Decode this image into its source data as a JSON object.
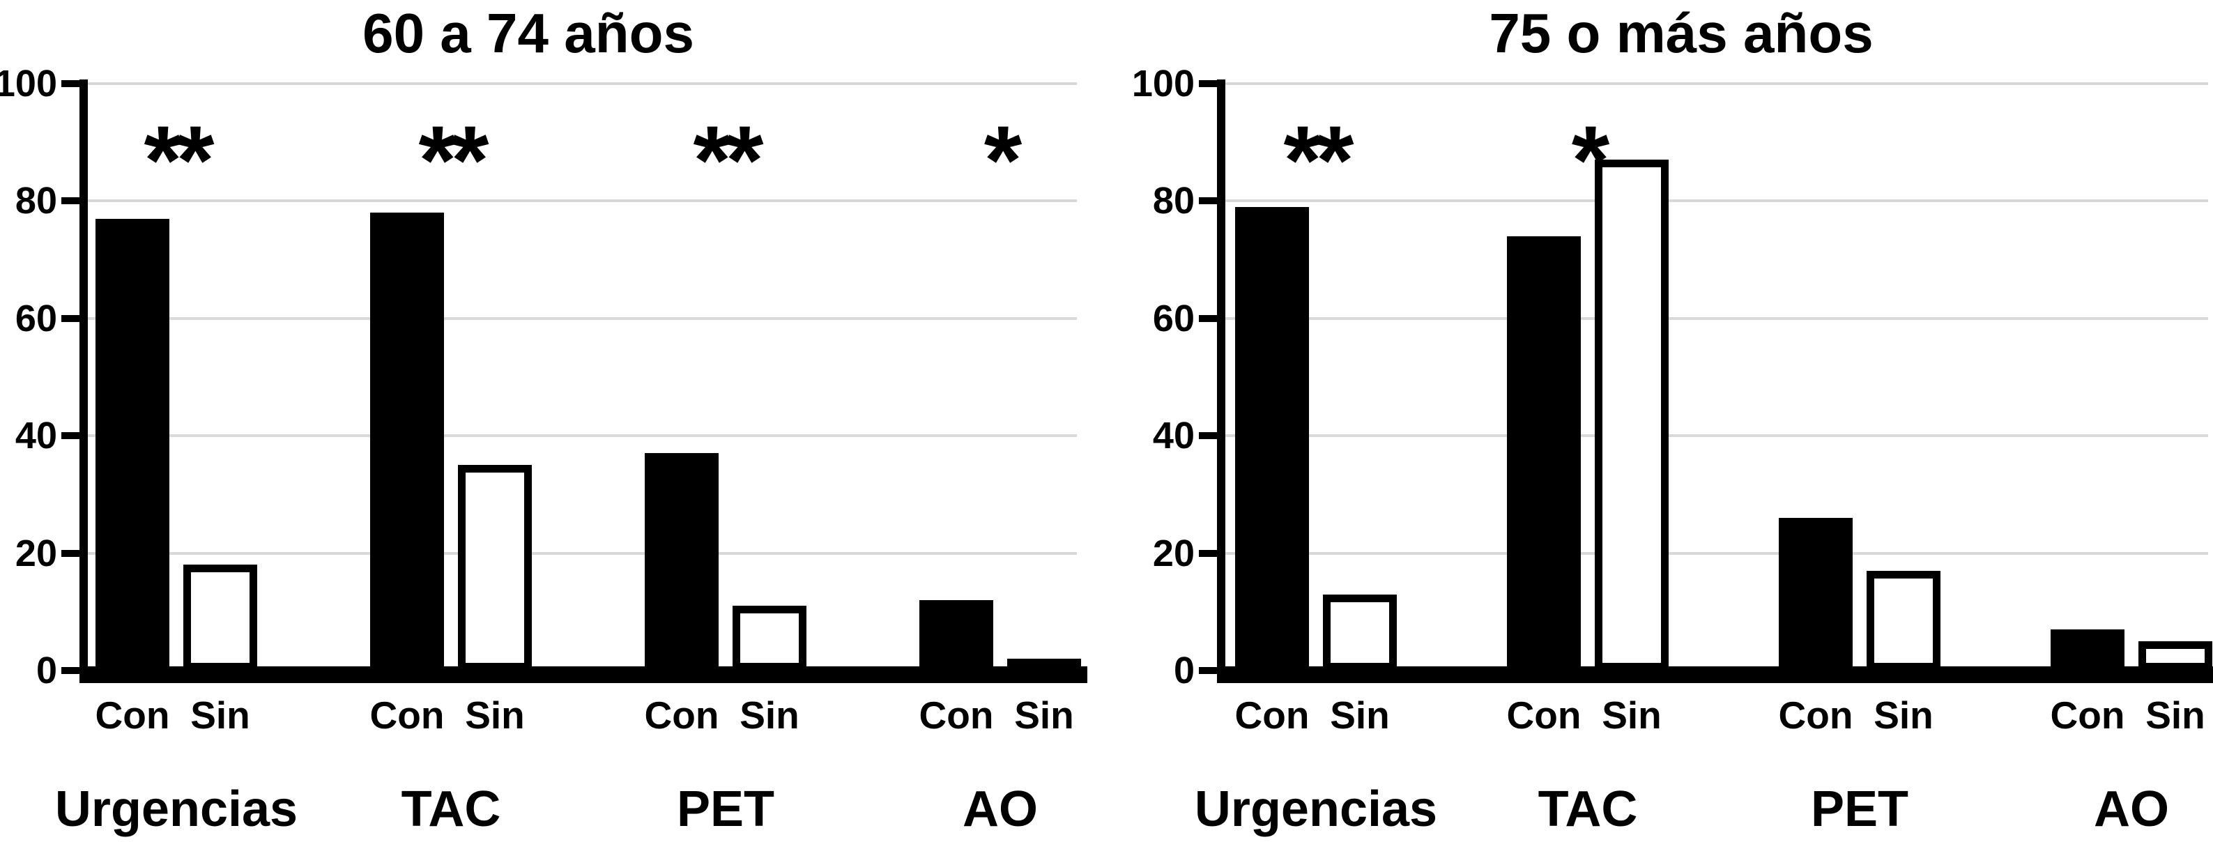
{
  "figure": {
    "background": "#ffffff",
    "text_color": "#000000",
    "gridline_color": "#d9d9d9",
    "con_bar_fill": "#000000",
    "sin_bar_fill": "#ffffff",
    "sin_bar_border": "#000000"
  },
  "chart_data": [
    {
      "type": "bar",
      "title": "60 a 74 años",
      "categories": [
        "Urgencias",
        "TAC",
        "PET",
        "AO"
      ],
      "series": [
        {
          "name": "Con",
          "style": "solid-black",
          "values": [
            77,
            78,
            37,
            12
          ]
        },
        {
          "name": "Sin",
          "style": "white-outlined",
          "values": [
            18,
            35,
            11,
            2
          ]
        }
      ],
      "significance": [
        "**",
        "**",
        "**",
        "*"
      ],
      "ylim": [
        0,
        100
      ],
      "yticks": [
        0,
        20,
        40,
        60,
        80,
        100
      ],
      "grid": "horizontal",
      "legend": "none"
    },
    {
      "type": "bar",
      "title": "75 o más años",
      "categories": [
        "Urgencias",
        "TAC",
        "PET",
        "AO"
      ],
      "series": [
        {
          "name": "Con",
          "style": "solid-black",
          "values": [
            79,
            74,
            26,
            7
          ]
        },
        {
          "name": "Sin",
          "style": "white-outlined",
          "values": [
            13,
            87,
            17,
            5
          ]
        }
      ],
      "significance": [
        "**",
        "*",
        "",
        ""
      ],
      "ylim": [
        0,
        100
      ],
      "yticks": [
        0,
        20,
        40,
        60,
        80,
        100
      ],
      "grid": "horizontal",
      "legend": "none"
    }
  ]
}
